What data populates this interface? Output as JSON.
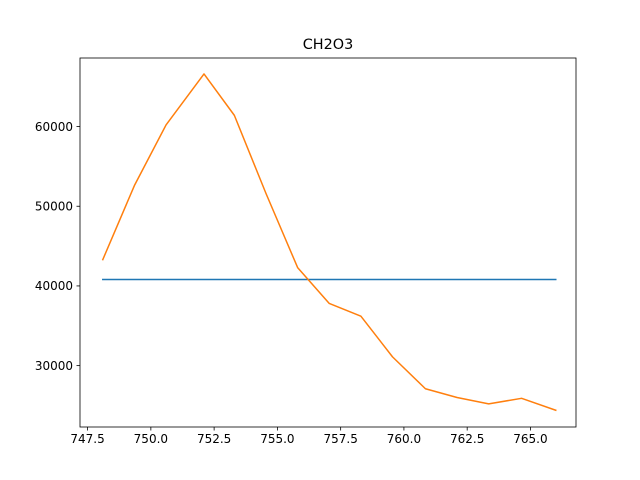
{
  "chart_data": {
    "type": "line",
    "title": "CH2O3",
    "xlabel": "",
    "ylabel": "",
    "xlim": [
      747.2,
      766.8
    ],
    "ylim": [
      22300,
      68600
    ],
    "grid": false,
    "legend": "none",
    "xticks": [
      747.5,
      750.0,
      752.5,
      755.0,
      757.5,
      760.0,
      762.5,
      765.0
    ],
    "xtick_labels": [
      "747.5",
      "750.0",
      "752.5",
      "755.0",
      "757.5",
      "760.0",
      "762.5",
      "765.0"
    ],
    "yticks": [
      30000,
      40000,
      50000,
      60000
    ],
    "ytick_labels": [
      "30000",
      "40000",
      "50000",
      "60000"
    ],
    "series": [
      {
        "color": "#1f77b4",
        "x": [
          748.1,
          766.0
        ],
        "y": [
          40800,
          40800
        ]
      },
      {
        "color": "#ff7f0e",
        "x": [
          748.1,
          749.35,
          750.6,
          752.1,
          753.3,
          754.55,
          755.8,
          757.05,
          758.3,
          759.55,
          760.85,
          762.1,
          763.35,
          764.65,
          766.0
        ],
        "y": [
          43300,
          52600,
          60200,
          66600,
          61400,
          51600,
          42300,
          37800,
          36200,
          31100,
          27100,
          26000,
          25200,
          25900,
          24400
        ]
      }
    ]
  }
}
